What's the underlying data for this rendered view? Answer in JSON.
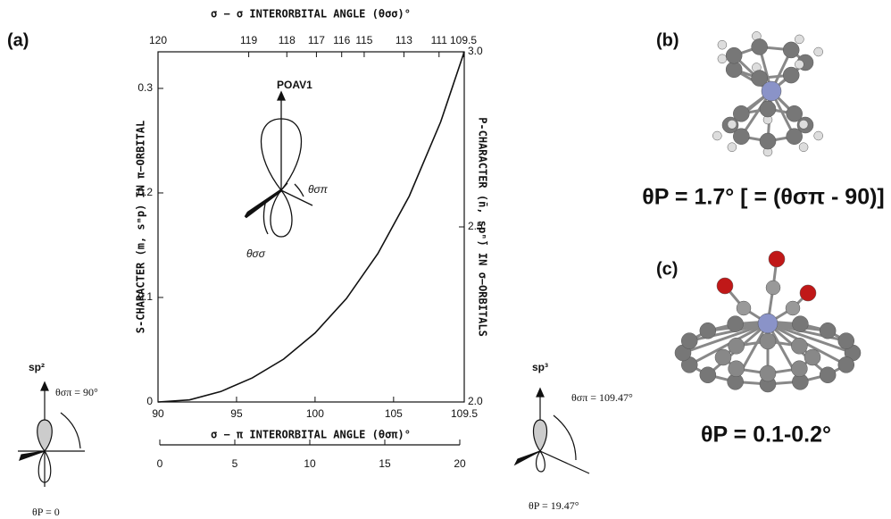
{
  "chart_data": {
    "type": "line",
    "title": "σ − σ INTERORBITAL ANGLE (θσσ)°",
    "x_label": "σ − π INTERORBITAL ANGLE (θσπ)°",
    "y_label": "S-CHARACTER (m, sᵐp) IN π−ORBITAL",
    "y2_label": "P-CHARACTER (n̄, spⁿ̄) IN σ−ORBITALS",
    "x": [
      90,
      92,
      94,
      96,
      98,
      100,
      102,
      104,
      106,
      108,
      109.5
    ],
    "series": [
      {
        "color": "#111111",
        "values": [
          0,
          0.002,
          0.01,
          0.023,
          0.041,
          0.066,
          0.099,
          0.142,
          0.197,
          0.268,
          0.335
        ]
      }
    ],
    "xlim": [
      90,
      109.5
    ],
    "xticks": [
      90,
      95,
      100,
      105,
      109.5
    ],
    "x2ticks": [
      120,
      119,
      118,
      117,
      116,
      115,
      113,
      111,
      109.5
    ],
    "x3lim": [
      0,
      20
    ],
    "x3ticks": [
      0,
      5,
      10,
      15,
      20
    ],
    "ylim": [
      0,
      0.335
    ],
    "yticks": [
      0,
      0.1,
      0.2,
      0.3
    ],
    "y2lim": [
      2,
      3
    ],
    "y2ticks": [
      {
        "value": 2,
        "label": "2.0"
      },
      {
        "value": 2.5,
        "label": "2.5"
      },
      {
        "value": 3,
        "label": "3.0"
      }
    ],
    "annotations": [
      "POAV1",
      "θσπ",
      "θσσ"
    ]
  },
  "panels": {
    "a": "(a)",
    "b": "(b)",
    "c": "(c)"
  },
  "sp2": {
    "label": "sp²",
    "angle": "θσπ = 90°",
    "theta_p": "θP = 0"
  },
  "sp3": {
    "label": "sp³",
    "angle": "θσπ = 109.47°",
    "theta_p": "θP = 19.47°"
  },
  "b_caption": "θP = 1.7° [ = (θσπ - 90)]",
  "c_caption": "θP = 0.1-0.2°"
}
